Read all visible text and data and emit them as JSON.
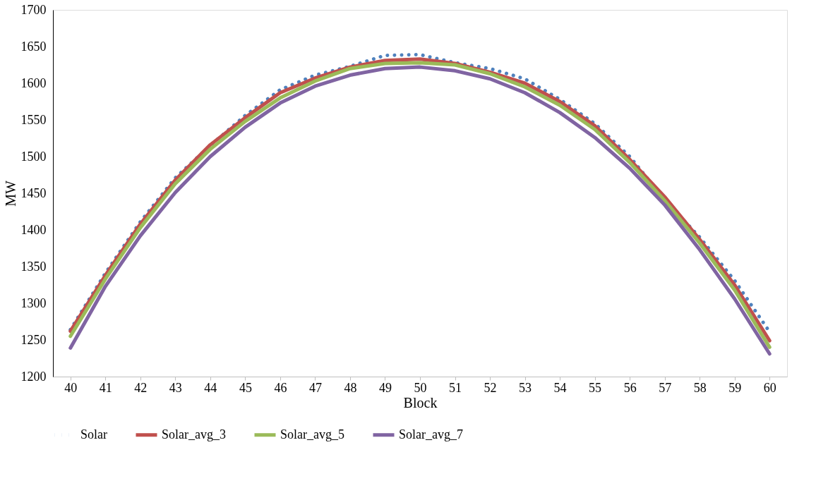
{
  "chart_data": {
    "type": "line",
    "xlabel": "Block",
    "ylabel": "MW",
    "categories": [
      "40",
      "41",
      "42",
      "43",
      "44",
      "45",
      "46",
      "47",
      "48",
      "49",
      "50",
      "51",
      "52",
      "53",
      "54",
      "55",
      "56",
      "57",
      "58",
      "59",
      "60"
    ],
    "ylim": [
      1200,
      1700
    ],
    "yticks": [
      1200,
      1250,
      1300,
      1350,
      1400,
      1450,
      1500,
      1550,
      1600,
      1650,
      1700
    ],
    "grid": false,
    "legend": "bottom",
    "series": [
      {
        "name": "Solar",
        "color": "#4f81bd",
        "line_style": "dotted",
        "values": [
          1264,
          1341,
          1411,
          1471,
          1515,
          1556,
          1591,
          1611,
          1623,
          1638,
          1639,
          1628,
          1620,
          1606,
          1578,
          1545,
          1500,
          1441,
          1390,
          1331,
          1261
        ]
      },
      {
        "name": "Solar_avg_3",
        "color": "#c0504d",
        "line_style": "solid",
        "values": [
          1262,
          1338,
          1408,
          1468,
          1516,
          1553,
          1587,
          1607,
          1622,
          1631,
          1633,
          1627,
          1615,
          1600,
          1575,
          1542,
          1496,
          1445,
          1387,
          1325,
          1249
        ]
      },
      {
        "name": "Solar_avg_5",
        "color": "#9bbb59",
        "line_style": "solid",
        "values": [
          1255,
          1333,
          1403,
          1463,
          1510,
          1548,
          1580,
          1603,
          1620,
          1627,
          1628,
          1625,
          1613,
          1595,
          1570,
          1537,
          1492,
          1440,
          1382,
          1318,
          1240
        ]
      },
      {
        "name": "Solar_avg_7",
        "color": "#8064a2",
        "line_style": "solid",
        "values": [
          1239,
          1323,
          1392,
          1451,
          1500,
          1540,
          1573,
          1596,
          1611,
          1620,
          1622,
          1617,
          1606,
          1587,
          1560,
          1526,
          1484,
          1434,
          1373,
          1306,
          1231
        ]
      }
    ]
  }
}
